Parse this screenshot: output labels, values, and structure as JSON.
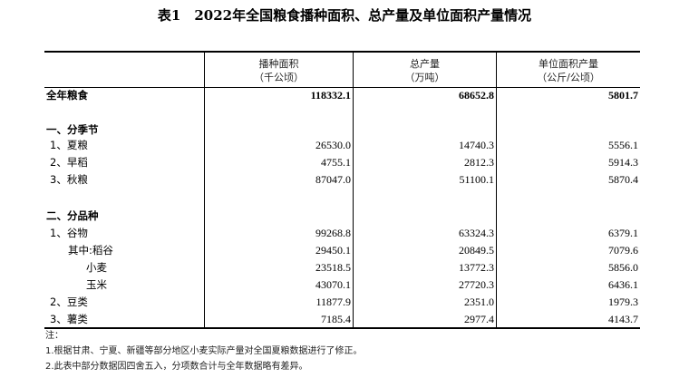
{
  "title": "表1　2022年全国粮食播种面积、总产量及单位面积产量情况",
  "columns": [
    {
      "name": "播种面积",
      "unit": "（千公顷）"
    },
    {
      "name": "总产量",
      "unit": "（万吨）"
    },
    {
      "name": "单位面积产量",
      "unit": "（公斤/公顷）"
    }
  ],
  "rows": [
    {
      "label": "全年粮食",
      "values": [
        "118332.1",
        "68652.8",
        "5801.7"
      ],
      "bold": true
    },
    {
      "label": "一、分季节",
      "values": [],
      "bold": true
    },
    {
      "label": "1、夏粮",
      "values": [
        "26530.0",
        "14740.3",
        "5556.1"
      ]
    },
    {
      "label": "2、早稻",
      "values": [
        "4755.1",
        "2812.3",
        "5914.3"
      ]
    },
    {
      "label": "3、秋粮",
      "values": [
        "87047.0",
        "51100.1",
        "5870.4"
      ]
    },
    {
      "label": "二、分品种",
      "values": [],
      "bold": true
    },
    {
      "label": "1、谷物",
      "values": [
        "99268.8",
        "63324.3",
        "6379.1"
      ]
    },
    {
      "label": "其中:稻谷",
      "values": [
        "29450.1",
        "20849.5",
        "7079.6"
      ]
    },
    {
      "label": "小麦",
      "values": [
        "23518.5",
        "13772.3",
        "5856.0"
      ]
    },
    {
      "label": "玉米",
      "values": [
        "43070.1",
        "27720.3",
        "6436.1"
      ]
    },
    {
      "label": "2、豆类",
      "values": [
        "11877.9",
        "2351.0",
        "1979.3"
      ]
    },
    {
      "label": "3、薯类",
      "values": [
        "7185.4",
        "2977.4",
        "4143.7"
      ]
    }
  ],
  "notes": [
    "注：",
    "1.根据甘肃、宁夏、新疆等部分地区小麦实际产量对全国夏粮数据进行了修正。",
    "2.此表中部分数据因四舍五入，分项数合计与全年数据略有差异。"
  ]
}
